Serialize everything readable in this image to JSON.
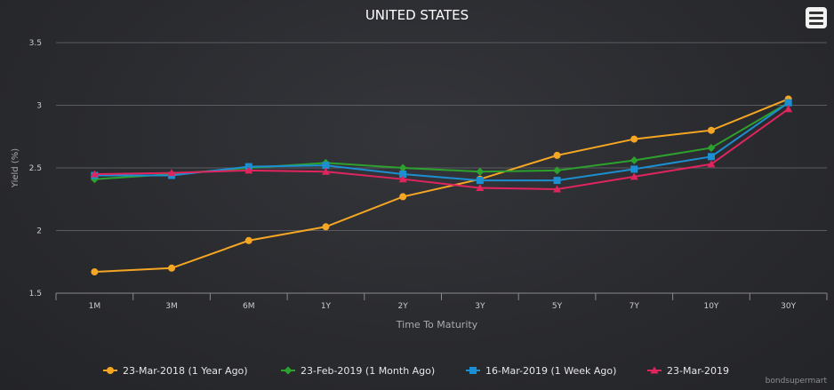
{
  "chart_data": {
    "type": "line",
    "title": "UNITED STATES",
    "xlabel": "Time To Maturity",
    "ylabel": "Yield (%)",
    "categories": [
      "1M",
      "3M",
      "6M",
      "1Y",
      "2Y",
      "3Y",
      "5Y",
      "7Y",
      "10Y",
      "30Y"
    ],
    "ylim": [
      1.5,
      3.5
    ],
    "yticks": [
      1.5,
      2,
      2.5,
      3,
      3.5
    ],
    "ytick_labels": [
      "1.5",
      "2",
      "2.5",
      "3",
      "3.5"
    ],
    "grid": "horizontal",
    "legend": "bottom",
    "series": [
      {
        "name": "23-Mar-2018 (1 Year Ago)",
        "color": "#f5a623",
        "marker": "circle",
        "values": [
          1.67,
          1.7,
          1.92,
          2.03,
          2.27,
          2.41,
          2.6,
          2.73,
          2.8,
          3.05
        ]
      },
      {
        "name": "23-Feb-2019 (1 Month Ago)",
        "color": "#2da12d",
        "marker": "diamond",
        "values": [
          2.41,
          2.45,
          2.5,
          2.54,
          2.5,
          2.47,
          2.48,
          2.56,
          2.66,
          3.02
        ]
      },
      {
        "name": "16-Mar-2019 (1 Week Ago)",
        "color": "#1b8fd1",
        "marker": "square",
        "values": [
          2.44,
          2.44,
          2.51,
          2.52,
          2.45,
          2.4,
          2.4,
          2.49,
          2.59,
          3.02
        ]
      },
      {
        "name": "23-Mar-2019",
        "color": "#e0245e",
        "marker": "triangle",
        "values": [
          2.45,
          2.46,
          2.48,
          2.47,
          2.41,
          2.34,
          2.33,
          2.43,
          2.53,
          2.97
        ]
      }
    ]
  },
  "menu": {
    "icon": "hamburger-menu-icon"
  },
  "credits": {
    "text": "bondsupermart"
  },
  "colors": {
    "axis_text": "#cccccc",
    "title_text": "#ffffff",
    "grid": "#5a5b60",
    "axis_line": "#8a8a8a",
    "legend_text": "#e6e6e6"
  }
}
